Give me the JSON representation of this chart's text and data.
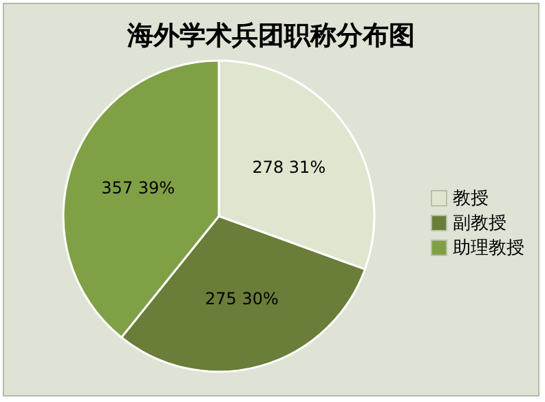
{
  "chart_data": {
    "type": "pie",
    "title": "海外学术兵团职称分布图",
    "categories": [
      "教授",
      "副教授",
      "助理教授"
    ],
    "values": [
      278,
      275,
      357
    ],
    "colors": [
      "#dfe6cf",
      "#6a7d39",
      "#80a046"
    ],
    "value_labels": [
      "278 31%",
      "275 30%",
      "357 39%"
    ],
    "legend": "right"
  }
}
